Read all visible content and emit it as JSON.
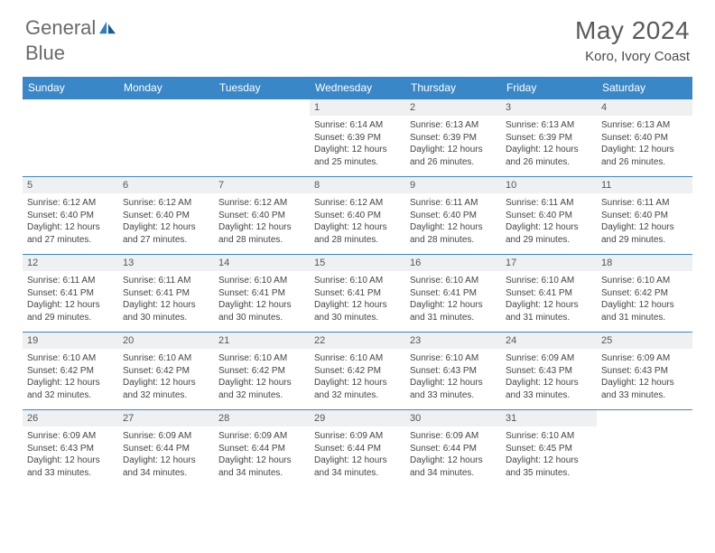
{
  "brand": {
    "name_part1": "General",
    "name_part2": "Blue"
  },
  "title": "May 2024",
  "location": "Koro, Ivory Coast",
  "colors": {
    "header_bg": "#3a87c8",
    "header_text": "#ffffff",
    "daynum_bg": "#eef0f2",
    "border": "#3a87c8",
    "brand_gray": "#6a6a6a",
    "brand_blue": "#2d7fc1"
  },
  "weekdays": [
    "Sunday",
    "Monday",
    "Tuesday",
    "Wednesday",
    "Thursday",
    "Friday",
    "Saturday"
  ],
  "weeks": [
    [
      null,
      null,
      null,
      {
        "n": "1",
        "sr": "6:14 AM",
        "ss": "6:39 PM",
        "dl": "12 hours and 25 minutes."
      },
      {
        "n": "2",
        "sr": "6:13 AM",
        "ss": "6:39 PM",
        "dl": "12 hours and 26 minutes."
      },
      {
        "n": "3",
        "sr": "6:13 AM",
        "ss": "6:39 PM",
        "dl": "12 hours and 26 minutes."
      },
      {
        "n": "4",
        "sr": "6:13 AM",
        "ss": "6:40 PM",
        "dl": "12 hours and 26 minutes."
      }
    ],
    [
      {
        "n": "5",
        "sr": "6:12 AM",
        "ss": "6:40 PM",
        "dl": "12 hours and 27 minutes."
      },
      {
        "n": "6",
        "sr": "6:12 AM",
        "ss": "6:40 PM",
        "dl": "12 hours and 27 minutes."
      },
      {
        "n": "7",
        "sr": "6:12 AM",
        "ss": "6:40 PM",
        "dl": "12 hours and 28 minutes."
      },
      {
        "n": "8",
        "sr": "6:12 AM",
        "ss": "6:40 PM",
        "dl": "12 hours and 28 minutes."
      },
      {
        "n": "9",
        "sr": "6:11 AM",
        "ss": "6:40 PM",
        "dl": "12 hours and 28 minutes."
      },
      {
        "n": "10",
        "sr": "6:11 AM",
        "ss": "6:40 PM",
        "dl": "12 hours and 29 minutes."
      },
      {
        "n": "11",
        "sr": "6:11 AM",
        "ss": "6:40 PM",
        "dl": "12 hours and 29 minutes."
      }
    ],
    [
      {
        "n": "12",
        "sr": "6:11 AM",
        "ss": "6:41 PM",
        "dl": "12 hours and 29 minutes."
      },
      {
        "n": "13",
        "sr": "6:11 AM",
        "ss": "6:41 PM",
        "dl": "12 hours and 30 minutes."
      },
      {
        "n": "14",
        "sr": "6:10 AM",
        "ss": "6:41 PM",
        "dl": "12 hours and 30 minutes."
      },
      {
        "n": "15",
        "sr": "6:10 AM",
        "ss": "6:41 PM",
        "dl": "12 hours and 30 minutes."
      },
      {
        "n": "16",
        "sr": "6:10 AM",
        "ss": "6:41 PM",
        "dl": "12 hours and 31 minutes."
      },
      {
        "n": "17",
        "sr": "6:10 AM",
        "ss": "6:41 PM",
        "dl": "12 hours and 31 minutes."
      },
      {
        "n": "18",
        "sr": "6:10 AM",
        "ss": "6:42 PM",
        "dl": "12 hours and 31 minutes."
      }
    ],
    [
      {
        "n": "19",
        "sr": "6:10 AM",
        "ss": "6:42 PM",
        "dl": "12 hours and 32 minutes."
      },
      {
        "n": "20",
        "sr": "6:10 AM",
        "ss": "6:42 PM",
        "dl": "12 hours and 32 minutes."
      },
      {
        "n": "21",
        "sr": "6:10 AM",
        "ss": "6:42 PM",
        "dl": "12 hours and 32 minutes."
      },
      {
        "n": "22",
        "sr": "6:10 AM",
        "ss": "6:42 PM",
        "dl": "12 hours and 32 minutes."
      },
      {
        "n": "23",
        "sr": "6:10 AM",
        "ss": "6:43 PM",
        "dl": "12 hours and 33 minutes."
      },
      {
        "n": "24",
        "sr": "6:09 AM",
        "ss": "6:43 PM",
        "dl": "12 hours and 33 minutes."
      },
      {
        "n": "25",
        "sr": "6:09 AM",
        "ss": "6:43 PM",
        "dl": "12 hours and 33 minutes."
      }
    ],
    [
      {
        "n": "26",
        "sr": "6:09 AM",
        "ss": "6:43 PM",
        "dl": "12 hours and 33 minutes."
      },
      {
        "n": "27",
        "sr": "6:09 AM",
        "ss": "6:44 PM",
        "dl": "12 hours and 34 minutes."
      },
      {
        "n": "28",
        "sr": "6:09 AM",
        "ss": "6:44 PM",
        "dl": "12 hours and 34 minutes."
      },
      {
        "n": "29",
        "sr": "6:09 AM",
        "ss": "6:44 PM",
        "dl": "12 hours and 34 minutes."
      },
      {
        "n": "30",
        "sr": "6:09 AM",
        "ss": "6:44 PM",
        "dl": "12 hours and 34 minutes."
      },
      {
        "n": "31",
        "sr": "6:10 AM",
        "ss": "6:45 PM",
        "dl": "12 hours and 35 minutes."
      },
      null
    ]
  ],
  "labels": {
    "sunrise": "Sunrise: ",
    "sunset": "Sunset: ",
    "daylight": "Daylight: "
  }
}
